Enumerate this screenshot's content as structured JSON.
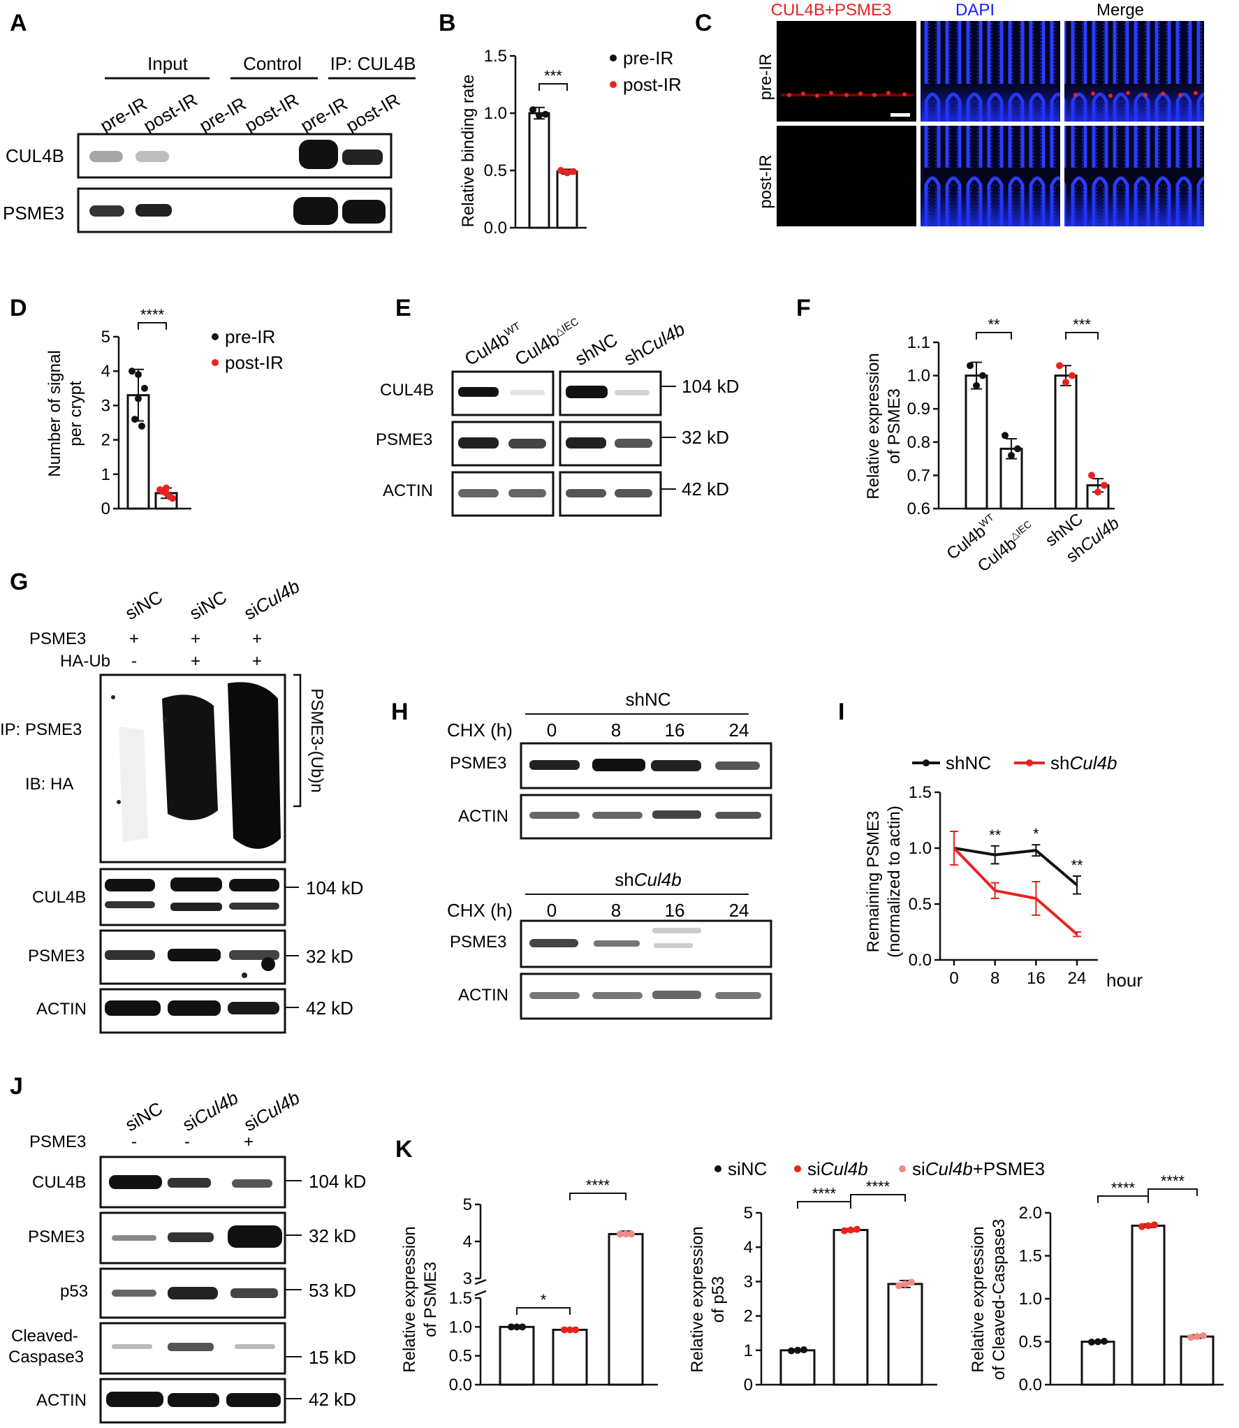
{
  "panels": {
    "A": {
      "letter": "A",
      "groups": [
        "Input",
        "Control",
        "IP: CUL4B"
      ],
      "lanes": [
        "pre-IR",
        "post-IR",
        "pre-IR",
        "post-IR",
        "pre-IR",
        "post-IR"
      ],
      "rows": [
        "CUL4B",
        "PSME3"
      ]
    },
    "B": {
      "letter": "B",
      "ylabel": "Relative binding rate",
      "legend": [
        "pre-IR",
        "post-IR"
      ],
      "sig": "***"
    },
    "C": {
      "letter": "C",
      "cols": [
        "CUL4B+PSME3",
        "DAPI",
        "Merge"
      ],
      "rows": [
        "pre-IR",
        "post-IR"
      ]
    },
    "D": {
      "letter": "D",
      "ylabel1": "Number of signal",
      "ylabel2": "per crypt",
      "legend": [
        "pre-IR",
        "post-IR"
      ],
      "sig": "****"
    },
    "E": {
      "letter": "E",
      "lanes": [
        "Cul4b",
        "Cul4b",
        "shNC",
        "sh",
        "Cul4b"
      ],
      "lane_sup": [
        "WT",
        "△IEC"
      ],
      "rows": [
        "CUL4B",
        "PSME3",
        "ACTIN"
      ],
      "sizes": [
        "104 kD",
        "32 kD",
        "42 kD"
      ]
    },
    "F": {
      "letter": "F",
      "ylabel1": "Relative expression",
      "ylabel2": "of PSME3",
      "sig": [
        "**",
        "***"
      ],
      "xticks": [
        "Cul4b",
        "Cul4b",
        "shNC",
        "sh",
        "Cul4b"
      ],
      "xtick_sup": [
        "WT",
        "△IEC"
      ]
    },
    "G": {
      "letter": "G",
      "lanes": [
        "siNC",
        "siNC",
        "si",
        "Cul4b"
      ],
      "cond_labels": [
        "PSME3",
        "HA-Ub"
      ],
      "psme3_signs": [
        "+",
        "+",
        "+"
      ],
      "haub_signs": [
        "-",
        "+",
        "+"
      ],
      "ip_label": "IP: PSME3",
      "ib_label": "IB: HA",
      "bracket_label": "PSME3-(Ub)n",
      "rows": [
        "CUL4B",
        "PSME3",
        "ACTIN"
      ],
      "sizes": [
        "104 kD",
        "32 kD",
        "42 kD"
      ]
    },
    "H": {
      "letter": "H",
      "group1": "shNC",
      "group2_prefix": "sh",
      "group2_italic": "Cul4b",
      "chx_label": "CHX (h)",
      "times": [
        "0",
        "8",
        "16",
        "24"
      ],
      "rows": [
        "PSME3",
        "ACTIN"
      ]
    },
    "I": {
      "letter": "I",
      "ylabel1": "Remaining PSME3",
      "ylabel2": "(normalized to actin)",
      "xunit": "hour",
      "legend_prefix_2": "sh",
      "legend_italic_2": "Cul4b"
    },
    "J": {
      "letter": "J",
      "lanes": [
        "siNC",
        "si",
        "Cul4b",
        "si",
        "Cul4b"
      ],
      "cond_label": "PSME3",
      "signs": [
        "-",
        "-",
        "+"
      ],
      "rows": [
        "CUL4B",
        "PSME3",
        "p53",
        "Cleaved-",
        "Caspase3",
        "ACTIN"
      ],
      "sizes": [
        "104 kD",
        "32 kD",
        "53 kD",
        "15 kD",
        "42 kD"
      ]
    },
    "K": {
      "letter": "K",
      "legend": [
        "siNC",
        "si",
        "Cul4b",
        "si",
        "Cul4b",
        "+PSME3"
      ],
      "ylabels": [
        "Relative expression",
        "of PSME3",
        "Relative expression",
        "of p53",
        "Relative expression",
        "of Cleaved-Caspase3"
      ]
    }
  },
  "colors": {
    "red": "#e8231f",
    "pink": "#f08a86",
    "blue": "#1a1aff",
    "black": "#111111"
  },
  "chart_data": [
    {
      "type": "bar",
      "panel": "B",
      "categories": [
        "pre-IR",
        "post-IR"
      ],
      "values": [
        1.0,
        0.49
      ],
      "errors": [
        0.05,
        0.02
      ],
      "ylabel": "Relative binding rate",
      "ylim": [
        0,
        1.5
      ],
      "yticks": [
        "0.0",
        "0.5",
        "1.0",
        "1.5"
      ],
      "points": [
        [
          1.03,
          0.98,
          0.99
        ],
        [
          0.5,
          0.48,
          0.49
        ]
      ]
    },
    {
      "type": "bar",
      "panel": "D",
      "categories": [
        "pre-IR",
        "post-IR"
      ],
      "values": [
        3.3,
        0.45
      ],
      "errors": [
        0.75,
        0.15
      ],
      "ylabel": "Number of signal per crypt",
      "ylim": [
        0,
        5
      ],
      "yticks": [
        "0",
        "1",
        "2",
        "3",
        "4",
        "5"
      ],
      "points": [
        [
          4.0,
          3.9,
          3.5,
          2.6,
          2.4,
          3.2
        ],
        [
          0.55,
          0.45,
          0.3,
          0.5,
          0.35,
          0.6
        ]
      ]
    },
    {
      "type": "bar",
      "panel": "F",
      "categories": [
        "Cul4b WT",
        "Cul4b △IEC",
        "shNC",
        "shCul4b"
      ],
      "values": [
        1.0,
        0.78,
        1.0,
        0.67
      ],
      "errors": [
        0.04,
        0.03,
        0.03,
        0.02
      ],
      "ylabel": "Relative expression of PSME3",
      "ylim": [
        0.6,
        1.1
      ],
      "yticks": [
        "0.6",
        "0.7",
        "0.8",
        "0.9",
        "1.0",
        "1.1"
      ],
      "points": [
        [
          1.03,
          0.97,
          1.0
        ],
        [
          0.82,
          0.76,
          0.78
        ],
        [
          1.03,
          0.98,
          1.0
        ],
        [
          0.7,
          0.65,
          0.67
        ]
      ]
    },
    {
      "type": "line",
      "panel": "I",
      "x": [
        0,
        8,
        16,
        24
      ],
      "series": [
        {
          "name": "shNC",
          "values": [
            1.0,
            0.94,
            0.98,
            0.67
          ],
          "errors": [
            0.15,
            0.08,
            0.05,
            0.08
          ]
        },
        {
          "name": "shCul4b",
          "values": [
            1.0,
            0.62,
            0.55,
            0.23
          ],
          "errors": [
            0.15,
            0.07,
            0.15,
            0.02
          ]
        }
      ],
      "ylabel": "Remaining PSME3 (normalized to actin)",
      "ylim": [
        0,
        1.5
      ],
      "yticks": [
        "0.0",
        "0.5",
        "1.0",
        "1.5"
      ],
      "xticks": [
        "0",
        "8",
        "16",
        "24"
      ],
      "sig": [
        "**",
        "*",
        "**"
      ]
    },
    {
      "type": "bar",
      "panel": "K1",
      "categories": [
        "siNC",
        "siCul4b",
        "siCul4b+PSME3"
      ],
      "values": [
        1.0,
        0.95,
        4.2
      ],
      "errors": [
        0.02,
        0.02,
        0.08
      ],
      "ylabel": "Relative expression of PSME3",
      "yticks_low": [
        "0.0",
        "0.5",
        "1.0",
        "1.5"
      ],
      "yticks_high": [
        "3",
        "4",
        "5"
      ],
      "sig": [
        "*",
        "****"
      ]
    },
    {
      "type": "bar",
      "panel": "K2",
      "categories": [
        "siNC",
        "siCul4b",
        "siCul4b+PSME3"
      ],
      "values": [
        1.0,
        4.5,
        2.93
      ],
      "errors": [
        0.03,
        0.04,
        0.1
      ],
      "ylabel": "Relative expression of p53",
      "ylim": [
        0,
        5
      ],
      "yticks": [
        "0",
        "1",
        "2",
        "3",
        "4",
        "5"
      ],
      "sig": [
        "****",
        "****"
      ]
    },
    {
      "type": "bar",
      "panel": "K3",
      "categories": [
        "siNC",
        "siCul4b",
        "siCul4b+PSME3"
      ],
      "values": [
        0.5,
        1.85,
        0.56
      ],
      "errors": [
        0.01,
        0.02,
        0.02
      ],
      "ylabel": "Relative expression of Cleaved-Caspase3",
      "ylim": [
        0,
        2.0
      ],
      "yticks": [
        "0.0",
        "0.5",
        "1.0",
        "1.5",
        "2.0"
      ],
      "sig": [
        "****",
        "****"
      ]
    }
  ]
}
